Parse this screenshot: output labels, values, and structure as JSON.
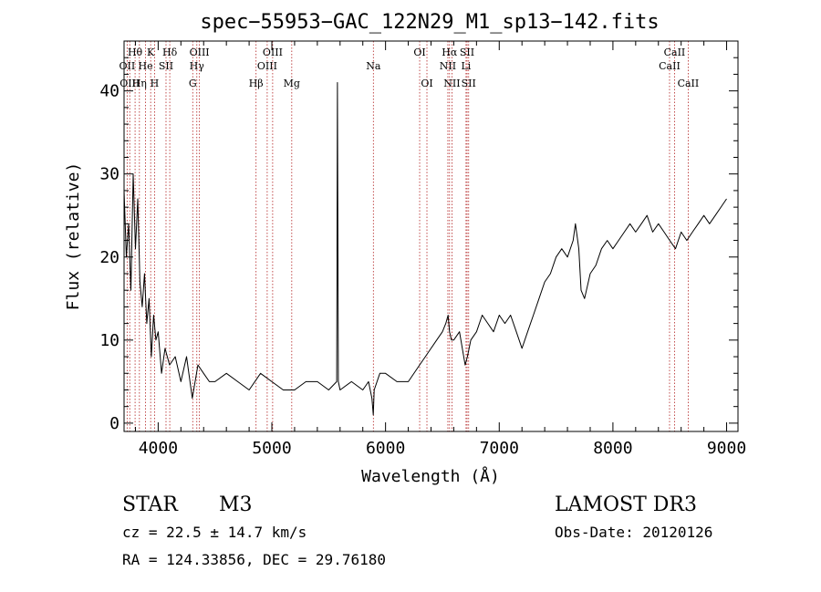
{
  "chart_data": {
    "type": "line",
    "title": "spec−55953−GAC_122N29_M1_sp13−142.fits",
    "xlabel": "Wavelength (Å)",
    "ylabel": "Flux (relative)",
    "xlim": [
      3700,
      9100
    ],
    "ylim": [
      -1,
      46
    ],
    "xticks": [
      4000,
      5000,
      6000,
      7000,
      8000,
      9000
    ],
    "yticks": [
      0,
      10,
      20,
      30,
      40
    ],
    "series": [
      {
        "name": "flux",
        "x": [
          3700,
          3720,
          3740,
          3760,
          3780,
          3800,
          3820,
          3840,
          3860,
          3880,
          3900,
          3920,
          3940,
          3960,
          3980,
          4000,
          4030,
          4060,
          4100,
          4150,
          4200,
          4250,
          4300,
          4350,
          4400,
          4450,
          4500,
          4600,
          4700,
          4800,
          4900,
          5000,
          5100,
          5200,
          5300,
          5400,
          5500,
          5570,
          5577,
          5585,
          5600,
          5700,
          5800,
          5850,
          5880,
          5892,
          5900,
          5950,
          6000,
          6100,
          6200,
          6300,
          6350,
          6400,
          6450,
          6500,
          6530,
          6550,
          6563,
          6580,
          6600,
          6650,
          6700,
          6720,
          6750,
          6800,
          6850,
          6900,
          6950,
          7000,
          7050,
          7100,
          7150,
          7200,
          7250,
          7300,
          7350,
          7400,
          7450,
          7500,
          7550,
          7600,
          7650,
          7670,
          7700,
          7720,
          7750,
          7800,
          7850,
          7900,
          7950,
          8000,
          8050,
          8100,
          8150,
          8200,
          8250,
          8300,
          8350,
          8400,
          8450,
          8500,
          8550,
          8600,
          8650,
          8700,
          8750,
          8800,
          8850,
          8900,
          8950,
          9000
        ],
        "y": [
          28,
          20,
          24,
          16,
          30,
          21,
          27,
          17,
          14,
          18,
          12,
          15,
          8,
          13,
          10,
          11,
          6,
          9,
          7,
          8,
          5,
          8,
          3,
          7,
          6,
          5,
          5,
          6,
          5,
          4,
          6,
          5,
          4,
          4,
          5,
          5,
          4,
          5,
          41,
          5,
          4,
          5,
          4,
          5,
          3,
          1,
          4,
          6,
          6,
          5,
          5,
          7,
          8,
          9,
          10,
          11,
          12,
          13,
          11,
          10,
          10,
          11,
          7,
          8,
          10,
          11,
          13,
          12,
          11,
          13,
          12,
          13,
          11,
          9,
          11,
          13,
          15,
          17,
          18,
          20,
          21,
          20,
          22,
          24,
          21,
          16,
          15,
          18,
          19,
          21,
          22,
          21,
          22,
          23,
          24,
          23,
          24,
          25,
          23,
          24,
          23,
          22,
          21,
          23,
          22,
          23,
          24,
          25,
          24,
          25,
          26,
          27
        ]
      }
    ],
    "lines": [
      {
        "label": "Hθ",
        "x": 3797,
        "row": 1
      },
      {
        "label": "OII",
        "x": 3727,
        "row": 2
      },
      {
        "label": "OIII",
        "x": 3750,
        "row": 3
      },
      {
        "label": "Hη",
        "x": 3835,
        "row": 3
      },
      {
        "label": "K",
        "x": 3934,
        "row": 1
      },
      {
        "label": "H",
        "x": 3968,
        "row": 3
      },
      {
        "label": "He",
        "x": 3889,
        "row": 2
      },
      {
        "label": "SII",
        "x": 4069,
        "row": 2
      },
      {
        "label": "Hδ",
        "x": 4102,
        "row": 1
      },
      {
        "label": "OIII",
        "x": 4363,
        "row": 1
      },
      {
        "label": "Hγ",
        "x": 4340,
        "row": 2
      },
      {
        "label": "G",
        "x": 4304,
        "row": 3
      },
      {
        "label": "Hβ",
        "x": 4861,
        "row": 3
      },
      {
        "label": "OIII",
        "x": 5007,
        "row": 1
      },
      {
        "label": "OIII",
        "x": 4959,
        "row": 2
      },
      {
        "label": "Mg",
        "x": 5175,
        "row": 3
      },
      {
        "label": "Na",
        "x": 5893,
        "row": 2
      },
      {
        "label": "OI",
        "x": 6300,
        "row": 1
      },
      {
        "label": "OI",
        "x": 6364,
        "row": 3
      },
      {
        "label": "Hα",
        "x": 6563,
        "row": 1
      },
      {
        "label": "NII",
        "x": 6548,
        "row": 2
      },
      {
        "label": "NII",
        "x": 6584,
        "row": 3
      },
      {
        "label": "SII",
        "x": 6717,
        "row": 1
      },
      {
        "label": "Li",
        "x": 6708,
        "row": 2
      },
      {
        "label": "SII",
        "x": 6731,
        "row": 3
      },
      {
        "label": "CaII",
        "x": 8542,
        "row": 1
      },
      {
        "label": "CaII",
        "x": 8498,
        "row": 2
      },
      {
        "label": "CaII",
        "x": 8662,
        "row": 3
      }
    ]
  },
  "info": {
    "object_class": "STAR",
    "subclass": "M3",
    "survey": "LAMOST DR3",
    "redshift": "cz = 22.5 ± 14.7 km/s",
    "obs_date": "Obs-Date: 20120126",
    "coords": "RA = 124.33856, DEC =  29.76180"
  },
  "colors": {
    "axis": "#000000",
    "line": "#000000",
    "marker": "#b22222"
  }
}
